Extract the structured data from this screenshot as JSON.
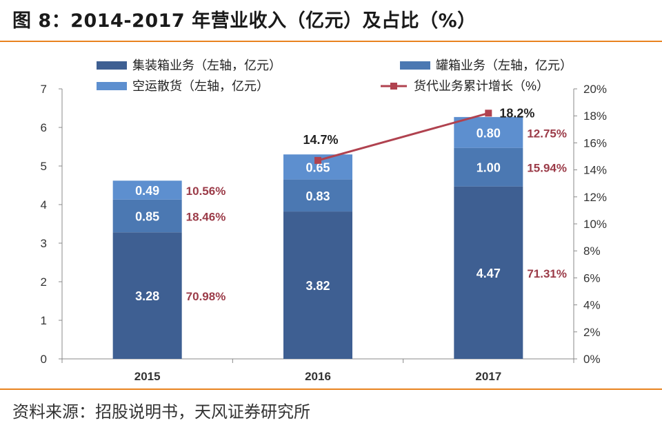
{
  "header": {
    "title": "图 8：2014-2017 年营业收入（亿元）及占比（%）"
  },
  "footer": {
    "source": "资料来源：招股说明书，天风证券研究所"
  },
  "colors": {
    "container": "#3e5f92",
    "tank": "#4b78b2",
    "air": "#5d8fcf",
    "growth": "#b0424f",
    "share_text": "#9b3b48",
    "rule": "#e8821e"
  },
  "chart_data": {
    "type": "bar",
    "stacked": true,
    "title": "2014-2017 年营业收入（亿元）及占比（%）",
    "categories": [
      "2015",
      "2016",
      "2017"
    ],
    "series": [
      {
        "name": "集装箱业务（左轴，亿元）",
        "values": [
          3.28,
          3.82,
          4.47
        ],
        "labels": [
          "3.28",
          "3.82",
          "4.47"
        ],
        "shares": [
          "70.98%",
          "",
          "71.31%"
        ]
      },
      {
        "name": "罐箱业务（左轴，亿元）",
        "values": [
          0.85,
          0.83,
          1.0
        ],
        "labels": [
          "0.85",
          "0.83",
          "1.00"
        ],
        "shares": [
          "18.46%",
          "",
          "15.94%"
        ]
      },
      {
        "name": "空运散货（左轴，亿元）",
        "values": [
          0.49,
          0.65,
          0.8
        ],
        "labels": [
          "0.49",
          "0.65",
          "0.80"
        ],
        "shares": [
          "10.56%",
          "",
          "12.75%"
        ]
      }
    ],
    "line_series": {
      "name": "货代业务累计增长（%）",
      "axis": "right",
      "x": [
        "2016",
        "2017"
      ],
      "values": [
        14.7,
        18.2
      ],
      "labels": [
        "14.7%",
        "18.2%"
      ]
    },
    "y_left": {
      "min": 0,
      "max": 7,
      "ticks": [
        "0",
        "1",
        "2",
        "3",
        "4",
        "5",
        "6",
        "7"
      ]
    },
    "y_right": {
      "min": 0,
      "max": 20,
      "ticks": [
        "0%",
        "2%",
        "4%",
        "6%",
        "8%",
        "10%",
        "12%",
        "14%",
        "16%",
        "18%",
        "20%"
      ]
    },
    "legend": {
      "position": "top",
      "items": [
        "集装箱业务（左轴，亿元）",
        "罐箱业务（左轴，亿元）",
        "空运散货（左轴，亿元）",
        "货代业务累计增长（%）"
      ]
    }
  }
}
